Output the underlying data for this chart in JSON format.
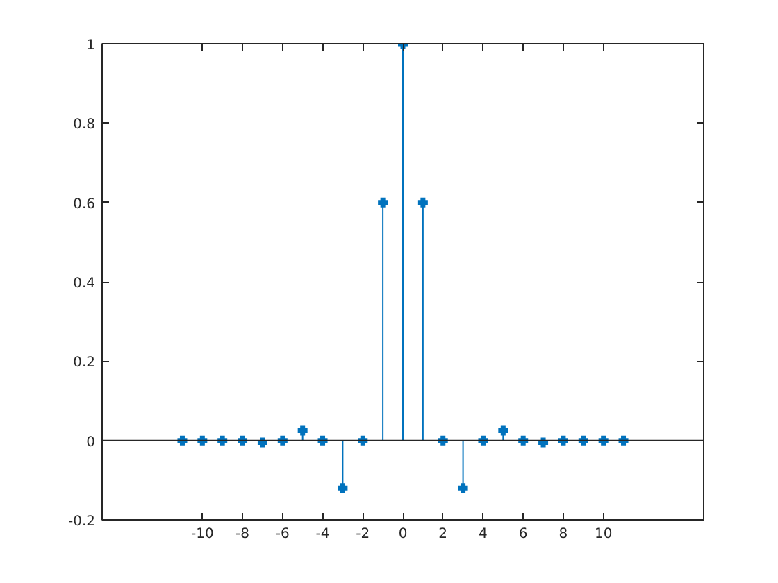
{
  "chart_data": {
    "type": "lollipop",
    "x": [
      -11,
      -10,
      -9,
      -8,
      -7,
      -6,
      -5,
      -4,
      -3,
      -2,
      -1,
      0,
      1,
      2,
      3,
      4,
      5,
      6,
      7,
      8,
      9,
      10,
      11
    ],
    "series": [
      {
        "color": "#0072bd",
        "values": [
          0,
          0,
          0,
          0,
          -0.005,
          0,
          0.025,
          0,
          -0.12,
          0,
          0.6,
          1,
          0.6,
          0,
          -0.12,
          0,
          0.025,
          0,
          -0.005,
          0,
          0,
          0,
          0
        ]
      }
    ],
    "xlim": [
      -15,
      15
    ],
    "ylim": [
      -0.2,
      1
    ],
    "xticks": [
      -10,
      -8,
      -6,
      -4,
      -2,
      0,
      2,
      4,
      6,
      8,
      10
    ],
    "yticks": [
      -0.2,
      0,
      0.2,
      0.4,
      0.6,
      0.8,
      1
    ],
    "marker": "cross",
    "grid": false,
    "ref_lines": [
      {
        "axis": "y",
        "value": 0,
        "color": "#262626"
      }
    ]
  }
}
